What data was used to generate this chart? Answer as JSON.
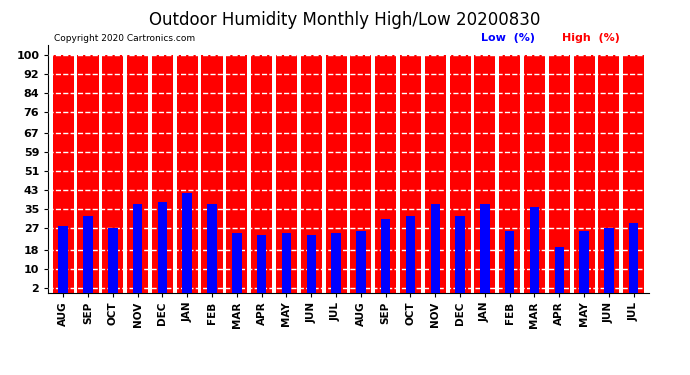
{
  "title": "Outdoor Humidity Monthly High/Low 20200830",
  "copyright": "Copyright 2020 Cartronics.com",
  "legend_low": "Low  (%)",
  "legend_high": "High  (%)",
  "months": [
    "AUG",
    "SEP",
    "OCT",
    "NOV",
    "DEC",
    "JAN",
    "FEB",
    "MAR",
    "APR",
    "MAY",
    "JUN",
    "JUL",
    "AUG",
    "SEP",
    "OCT",
    "NOV",
    "DEC",
    "JAN",
    "FEB",
    "MAR",
    "APR",
    "MAY",
    "JUN",
    "JUL"
  ],
  "high_values": [
    100,
    100,
    100,
    100,
    100,
    100,
    100,
    100,
    100,
    100,
    100,
    100,
    100,
    100,
    100,
    100,
    100,
    100,
    100,
    100,
    100,
    100,
    100,
    100
  ],
  "low_values": [
    28,
    32,
    27,
    37,
    38,
    42,
    37,
    25,
    24,
    25,
    24,
    25,
    26,
    31,
    32,
    37,
    32,
    37,
    26,
    36,
    19,
    26,
    27,
    29
  ],
  "high_color": "#ff0000",
  "low_color": "#0000ff",
  "bg_color": "#ffffff",
  "ylim": [
    0,
    104
  ],
  "yticks": [
    2,
    10,
    18,
    27,
    35,
    43,
    51,
    59,
    67,
    76,
    84,
    92,
    100
  ],
  "title_fontsize": 12,
  "axis_bg_color": "#ffffff",
  "grid_color": "#808080",
  "title_color": "#000000",
  "copyright_color": "#000000",
  "legend_low_color": "#0000ff",
  "legend_high_color": "#ff0000"
}
